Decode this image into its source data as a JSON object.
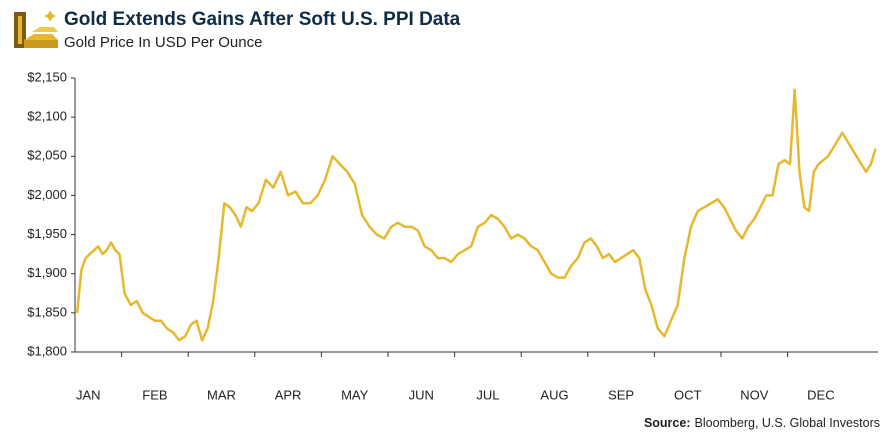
{
  "chart_data": {
    "type": "line",
    "title": "Gold Extends Gains After Soft U.S. PPI Data",
    "subtitle": "Gold Price In USD Per Ounce",
    "source_label": "Source:",
    "source": "Bloomberg, U.S. Global Investors",
    "color": "#e6b82e",
    "categories": [
      "JAN",
      "FEB",
      "MAR",
      "APR",
      "MAY",
      "JUN",
      "JUL",
      "AUG",
      "SEP",
      "OCT",
      "NOV",
      "DEC"
    ],
    "values": [
      [
        1850,
        1905,
        1920,
        1925,
        1930,
        1935,
        1925,
        1930,
        1940,
        1930,
        1925
      ],
      [
        1875,
        1860,
        1865,
        1850,
        1845,
        1840,
        1840,
        1830,
        1825,
        1815,
        1820
      ],
      [
        1835,
        1840,
        1815,
        1830,
        1865,
        1920,
        1990,
        1985,
        1975,
        1960,
        1985,
        1980
      ],
      [
        1990,
        2020,
        2010,
        2030,
        2000,
        2005,
        1990,
        1990,
        2000
      ],
      [
        2020,
        2050,
        2040,
        2030,
        2015,
        1975,
        1960,
        1950,
        1945
      ],
      [
        1960,
        1965,
        1960,
        1960,
        1955,
        1935,
        1930,
        1920,
        1920,
        1915
      ],
      [
        1925,
        1930,
        1935,
        1960,
        1965,
        1975,
        1970,
        1960,
        1945,
        1950
      ],
      [
        1945,
        1935,
        1930,
        1915,
        1900,
        1895,
        1895,
        1910,
        1920,
        1940
      ],
      [
        1945,
        1935,
        1920,
        1925,
        1915,
        1920,
        1925,
        1930,
        1920,
        1880,
        1860
      ],
      [
        1830,
        1820,
        1840,
        1860,
        1920,
        1960,
        1980,
        1985,
        1990,
        1995
      ],
      [
        1985,
        1970,
        1955,
        1945,
        1960,
        1970,
        1985,
        2000,
        2000,
        2040,
        2045
      ],
      [
        2040,
        2135,
        2030,
        1985,
        1980,
        2030,
        2040,
        2045,
        2050,
        2060,
        2070,
        2080,
        2070,
        2060,
        2050,
        2040,
        2030,
        2040,
        2060
      ]
    ],
    "ylim": [
      1800,
      2150
    ],
    "yticks": [
      {
        "value": 1800,
        "label": "$1,800"
      },
      {
        "value": 1850,
        "label": "$1,850"
      },
      {
        "value": 1900,
        "label": "$1,900"
      },
      {
        "value": 1950,
        "label": "$1,950"
      },
      {
        "value": 2000,
        "label": "$2,000"
      },
      {
        "value": 2050,
        "label": "$2,050"
      },
      {
        "value": 2100,
        "label": "$2,100"
      },
      {
        "value": 2150,
        "label": "$2,150"
      }
    ]
  }
}
